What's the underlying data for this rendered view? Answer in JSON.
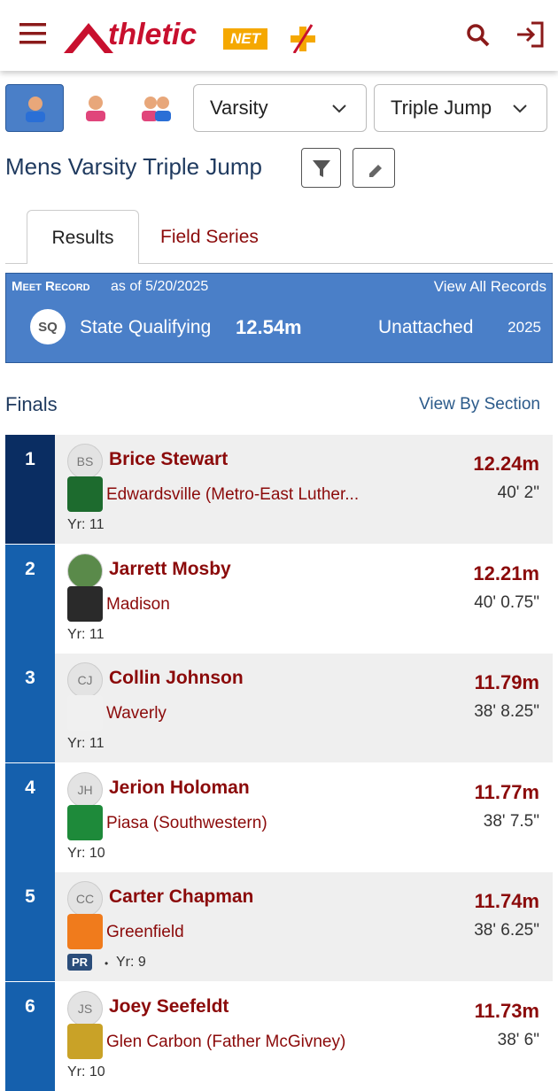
{
  "header": {
    "logo_text": "thletic",
    "logo_badge": "NET"
  },
  "filters": {
    "level": "Varsity",
    "event": "Triple Jump"
  },
  "title": "Mens Varsity Triple Jump",
  "tabs": [
    "Results",
    "Field Series"
  ],
  "record": {
    "label": "Meet Record",
    "as_of": "as of 5/20/2025",
    "link": "View All Records",
    "badge": "SQ",
    "name": "State Qualifying",
    "mark": "12.54m",
    "team": "Unattached",
    "year": "2025"
  },
  "finals": {
    "title": "Finals",
    "link": "View By Section"
  },
  "results": [
    {
      "place": 1,
      "initials": "BS",
      "name": "Brice Stewart",
      "team": "Edwardsville (Metro-East Luther...",
      "year": "Yr: 11",
      "mark": "12.24m",
      "imperial": "40' 2\""
    },
    {
      "place": 2,
      "name": "Jarrett Mosby",
      "team": "Madison",
      "year": "Yr: 11",
      "mark": "12.21m",
      "imperial": "40' 0.75\""
    },
    {
      "place": 3,
      "initials": "CJ",
      "name": "Collin Johnson",
      "team": "Waverly",
      "year": "Yr: 11",
      "mark": "11.79m",
      "imperial": "38' 8.25\""
    },
    {
      "place": 4,
      "initials": "JH",
      "name": "Jerion Holoman",
      "team": "Piasa (Southwestern)",
      "year": "Yr: 10",
      "mark": "11.77m",
      "imperial": "38' 7.5\""
    },
    {
      "place": 5,
      "initials": "CC",
      "name": "Carter Chapman",
      "team": "Greenfield",
      "pr": "PR",
      "sep": "•",
      "year": "Yr: 9",
      "mark": "11.74m",
      "imperial": "38' 6.25\""
    },
    {
      "place": 6,
      "initials": "JS",
      "name": "Joey Seefeldt",
      "team": "Glen Carbon (Father McGivney)",
      "year": "Yr: 10",
      "mark": "11.73m",
      "imperial": "38' 6\""
    }
  ]
}
